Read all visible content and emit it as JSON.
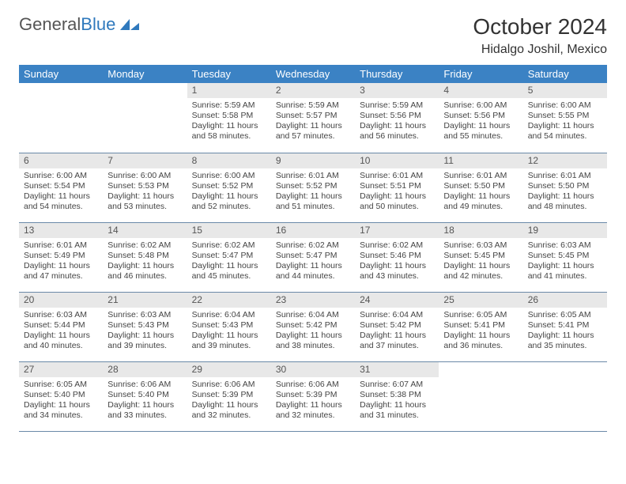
{
  "logo": {
    "word1": "General",
    "word2": "Blue"
  },
  "title": "October 2024",
  "location": "Hidalgo Joshil, Mexico",
  "colors": {
    "header_bg": "#3b82c4",
    "header_text": "#ffffff",
    "daynum_bg": "#e8e8e8",
    "row_divider": "#6a89a8",
    "logo_blue": "#2f79bd"
  },
  "days_of_week": [
    "Sunday",
    "Monday",
    "Tuesday",
    "Wednesday",
    "Thursday",
    "Friday",
    "Saturday"
  ],
  "weeks": [
    [
      null,
      null,
      {
        "n": "1",
        "sunrise": "Sunrise: 5:59 AM",
        "sunset": "Sunset: 5:58 PM",
        "daylight": "Daylight: 11 hours and 58 minutes."
      },
      {
        "n": "2",
        "sunrise": "Sunrise: 5:59 AM",
        "sunset": "Sunset: 5:57 PM",
        "daylight": "Daylight: 11 hours and 57 minutes."
      },
      {
        "n": "3",
        "sunrise": "Sunrise: 5:59 AM",
        "sunset": "Sunset: 5:56 PM",
        "daylight": "Daylight: 11 hours and 56 minutes."
      },
      {
        "n": "4",
        "sunrise": "Sunrise: 6:00 AM",
        "sunset": "Sunset: 5:56 PM",
        "daylight": "Daylight: 11 hours and 55 minutes."
      },
      {
        "n": "5",
        "sunrise": "Sunrise: 6:00 AM",
        "sunset": "Sunset: 5:55 PM",
        "daylight": "Daylight: 11 hours and 54 minutes."
      }
    ],
    [
      {
        "n": "6",
        "sunrise": "Sunrise: 6:00 AM",
        "sunset": "Sunset: 5:54 PM",
        "daylight": "Daylight: 11 hours and 54 minutes."
      },
      {
        "n": "7",
        "sunrise": "Sunrise: 6:00 AM",
        "sunset": "Sunset: 5:53 PM",
        "daylight": "Daylight: 11 hours and 53 minutes."
      },
      {
        "n": "8",
        "sunrise": "Sunrise: 6:00 AM",
        "sunset": "Sunset: 5:52 PM",
        "daylight": "Daylight: 11 hours and 52 minutes."
      },
      {
        "n": "9",
        "sunrise": "Sunrise: 6:01 AM",
        "sunset": "Sunset: 5:52 PM",
        "daylight": "Daylight: 11 hours and 51 minutes."
      },
      {
        "n": "10",
        "sunrise": "Sunrise: 6:01 AM",
        "sunset": "Sunset: 5:51 PM",
        "daylight": "Daylight: 11 hours and 50 minutes."
      },
      {
        "n": "11",
        "sunrise": "Sunrise: 6:01 AM",
        "sunset": "Sunset: 5:50 PM",
        "daylight": "Daylight: 11 hours and 49 minutes."
      },
      {
        "n": "12",
        "sunrise": "Sunrise: 6:01 AM",
        "sunset": "Sunset: 5:50 PM",
        "daylight": "Daylight: 11 hours and 48 minutes."
      }
    ],
    [
      {
        "n": "13",
        "sunrise": "Sunrise: 6:01 AM",
        "sunset": "Sunset: 5:49 PM",
        "daylight": "Daylight: 11 hours and 47 minutes."
      },
      {
        "n": "14",
        "sunrise": "Sunrise: 6:02 AM",
        "sunset": "Sunset: 5:48 PM",
        "daylight": "Daylight: 11 hours and 46 minutes."
      },
      {
        "n": "15",
        "sunrise": "Sunrise: 6:02 AM",
        "sunset": "Sunset: 5:47 PM",
        "daylight": "Daylight: 11 hours and 45 minutes."
      },
      {
        "n": "16",
        "sunrise": "Sunrise: 6:02 AM",
        "sunset": "Sunset: 5:47 PM",
        "daylight": "Daylight: 11 hours and 44 minutes."
      },
      {
        "n": "17",
        "sunrise": "Sunrise: 6:02 AM",
        "sunset": "Sunset: 5:46 PM",
        "daylight": "Daylight: 11 hours and 43 minutes."
      },
      {
        "n": "18",
        "sunrise": "Sunrise: 6:03 AM",
        "sunset": "Sunset: 5:45 PM",
        "daylight": "Daylight: 11 hours and 42 minutes."
      },
      {
        "n": "19",
        "sunrise": "Sunrise: 6:03 AM",
        "sunset": "Sunset: 5:45 PM",
        "daylight": "Daylight: 11 hours and 41 minutes."
      }
    ],
    [
      {
        "n": "20",
        "sunrise": "Sunrise: 6:03 AM",
        "sunset": "Sunset: 5:44 PM",
        "daylight": "Daylight: 11 hours and 40 minutes."
      },
      {
        "n": "21",
        "sunrise": "Sunrise: 6:03 AM",
        "sunset": "Sunset: 5:43 PM",
        "daylight": "Daylight: 11 hours and 39 minutes."
      },
      {
        "n": "22",
        "sunrise": "Sunrise: 6:04 AM",
        "sunset": "Sunset: 5:43 PM",
        "daylight": "Daylight: 11 hours and 39 minutes."
      },
      {
        "n": "23",
        "sunrise": "Sunrise: 6:04 AM",
        "sunset": "Sunset: 5:42 PM",
        "daylight": "Daylight: 11 hours and 38 minutes."
      },
      {
        "n": "24",
        "sunrise": "Sunrise: 6:04 AM",
        "sunset": "Sunset: 5:42 PM",
        "daylight": "Daylight: 11 hours and 37 minutes."
      },
      {
        "n": "25",
        "sunrise": "Sunrise: 6:05 AM",
        "sunset": "Sunset: 5:41 PM",
        "daylight": "Daylight: 11 hours and 36 minutes."
      },
      {
        "n": "26",
        "sunrise": "Sunrise: 6:05 AM",
        "sunset": "Sunset: 5:41 PM",
        "daylight": "Daylight: 11 hours and 35 minutes."
      }
    ],
    [
      {
        "n": "27",
        "sunrise": "Sunrise: 6:05 AM",
        "sunset": "Sunset: 5:40 PM",
        "daylight": "Daylight: 11 hours and 34 minutes."
      },
      {
        "n": "28",
        "sunrise": "Sunrise: 6:06 AM",
        "sunset": "Sunset: 5:40 PM",
        "daylight": "Daylight: 11 hours and 33 minutes."
      },
      {
        "n": "29",
        "sunrise": "Sunrise: 6:06 AM",
        "sunset": "Sunset: 5:39 PM",
        "daylight": "Daylight: 11 hours and 32 minutes."
      },
      {
        "n": "30",
        "sunrise": "Sunrise: 6:06 AM",
        "sunset": "Sunset: 5:39 PM",
        "daylight": "Daylight: 11 hours and 32 minutes."
      },
      {
        "n": "31",
        "sunrise": "Sunrise: 6:07 AM",
        "sunset": "Sunset: 5:38 PM",
        "daylight": "Daylight: 11 hours and 31 minutes."
      },
      null,
      null
    ]
  ]
}
